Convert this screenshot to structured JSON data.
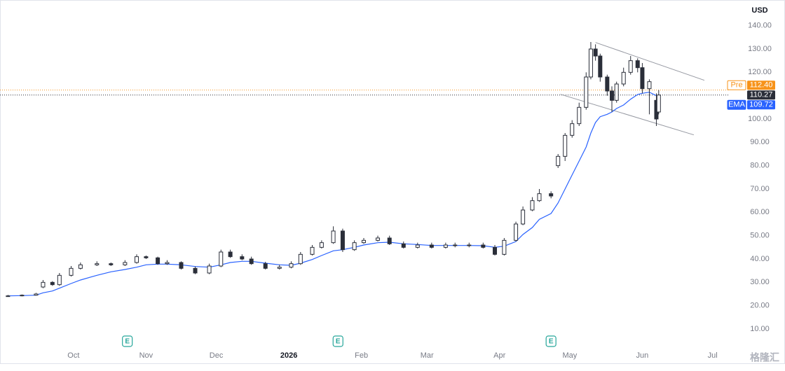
{
  "chart_data": {
    "type": "candlestick",
    "currency": "USD",
    "color": "#2a2e39",
    "x": [
      2,
      8,
      14,
      17,
      21,
      24,
      29,
      33,
      40,
      46,
      52,
      57,
      61,
      66,
      70,
      76,
      82,
      88,
      93,
      97,
      102,
      106,
      112,
      118,
      123,
      127,
      132,
      136,
      141,
      145,
      150,
      154,
      160,
      165,
      171,
      177,
      183,
      189,
      193,
      199,
      205,
      210,
      214,
      219,
      222,
      226,
      229,
      234,
      237,
      240,
      243,
      246,
      249,
      251,
      253,
      255,
      258,
      260,
      262,
      265,
      268,
      271,
      273,
      276,
      279,
      280
    ],
    "open": [
      24,
      24.2,
      24.5,
      28,
      30,
      29,
      33,
      36,
      37.5,
      38,
      37.5,
      38.5,
      41,
      40.5,
      38,
      38.5,
      36,
      34,
      37,
      43,
      41,
      40,
      38,
      36,
      36.5,
      38,
      42,
      45,
      47,
      52,
      44,
      47,
      48,
      49,
      46.5,
      45,
      46,
      45,
      46,
      46,
      46,
      45,
      42,
      48,
      55,
      61,
      65,
      68,
      80,
      84,
      93,
      98,
      105,
      118,
      130,
      127,
      118,
      112,
      108,
      115,
      120,
      125,
      122,
      113,
      108,
      103
    ],
    "high": [
      24.6,
      24.8,
      25.5,
      31,
      30.5,
      34,
      37,
      38.5,
      39,
      38.5,
      39.5,
      42,
      41.5,
      41,
      39.5,
      39,
      36.8,
      38,
      44,
      44,
      42,
      41,
      38.8,
      37.5,
      39,
      43,
      46,
      48,
      54,
      53,
      48,
      49,
      50,
      50,
      47.5,
      47,
      47,
      47,
      47,
      47,
      47,
      46,
      49,
      56,
      62.5,
      66.5,
      70,
      69,
      85,
      94,
      99.5,
      107,
      120,
      133,
      132,
      128,
      119,
      114,
      116,
      122,
      127,
      126,
      124,
      117,
      111,
      112.4
    ],
    "low": [
      23.8,
      24,
      24.3,
      27.5,
      28.5,
      28.5,
      32.5,
      35.5,
      37,
      37,
      37,
      38,
      40,
      37.5,
      37.5,
      35.5,
      33.5,
      33.5,
      36.5,
      40.5,
      39.5,
      37.5,
      35.5,
      35.5,
      36,
      37.5,
      41.5,
      44.5,
      46.5,
      43,
      43.5,
      46.5,
      47.5,
      46,
      44.5,
      44.5,
      44.5,
      44.5,
      45,
      45,
      44.5,
      41.5,
      41.5,
      47.5,
      54.5,
      60.5,
      64.5,
      66,
      79,
      82,
      92,
      97,
      104,
      117,
      125,
      116,
      110,
      103,
      107,
      114,
      119,
      120,
      111,
      102,
      97,
      102
    ],
    "close": [
      24.2,
      24.5,
      25,
      30,
      29,
      33,
      36,
      37.5,
      38,
      37.5,
      38.5,
      41,
      40.5,
      38,
      38.5,
      36,
      34,
      37,
      43,
      41,
      40,
      38,
      36,
      36.5,
      38,
      42,
      45,
      47,
      52,
      44,
      47,
      48,
      49,
      46.5,
      45,
      46,
      45,
      46,
      46,
      46,
      45,
      42,
      48,
      55,
      61,
      65,
      68,
      67,
      84,
      93,
      98,
      105,
      118,
      130,
      127,
      118,
      112,
      108,
      115,
      120,
      125,
      122,
      113,
      116,
      100,
      110.27
    ],
    "ema": {
      "name": "EMA",
      "color": "#2962ff",
      "values": [
        24.2,
        24.3,
        24.5,
        25.5,
        26.3,
        27.5,
        29.5,
        31,
        33,
        34.5,
        35.5,
        36.5,
        37.5,
        37.8,
        37.8,
        37.5,
        36.8,
        36.5,
        37.5,
        38.5,
        39,
        39,
        38.2,
        37.5,
        37.3,
        38.2,
        39.8,
        41.5,
        43.5,
        44,
        45,
        46,
        47,
        47.2,
        46.5,
        46.2,
        45.8,
        45.8,
        45.8,
        45.8,
        45.7,
        45,
        45.5,
        47.5,
        50.5,
        53.5,
        57,
        59.5,
        64,
        70,
        76,
        82,
        88,
        94,
        98.5,
        101,
        102,
        103,
        104.5,
        106,
        108.5,
        110.5,
        111,
        111.5,
        110,
        109.72
      ]
    },
    "xlim": [
      1,
      310
    ],
    "ylim": [
      4,
      151
    ],
    "xticks": [
      {
        "value": 30,
        "label": "Oct"
      },
      {
        "value": 61,
        "label": "Nov"
      },
      {
        "value": 91,
        "label": "Dec"
      },
      {
        "value": 122,
        "label": "2026"
      },
      {
        "value": 153,
        "label": "Feb"
      },
      {
        "value": 181,
        "label": "Mar"
      },
      {
        "value": 212,
        "label": "Apr"
      },
      {
        "value": 242,
        "label": "May"
      },
      {
        "value": 273,
        "label": "Jun"
      },
      {
        "value": 303,
        "label": "Jul"
      }
    ],
    "yticks": [
      {
        "value": 10,
        "label": "10.00"
      },
      {
        "value": 20,
        "label": "20.00"
      },
      {
        "value": 30,
        "label": "30.00"
      },
      {
        "value": 40,
        "label": "40.00"
      },
      {
        "value": 50,
        "label": "50.00"
      },
      {
        "value": 60,
        "label": "60.00"
      },
      {
        "value": 70,
        "label": "70.00"
      },
      {
        "value": 80,
        "label": "80.00"
      },
      {
        "value": 90,
        "label": "90.00"
      },
      {
        "value": 100,
        "label": "100.00"
      },
      {
        "value": 110,
        "label": "110.00"
      },
      {
        "value": 120,
        "label": "120.00"
      },
      {
        "value": 130,
        "label": "130.00"
      },
      {
        "value": 140,
        "label": "140.00"
      }
    ],
    "price_lines": [
      {
        "label": "Pre",
        "value": 112.4,
        "value_label": "112.40",
        "color": "#f7931a",
        "dotted": true
      },
      {
        "value": 110.27,
        "color": "#2a2e39",
        "dotted": true
      },
      {
        "label": "EMA",
        "value": 109.72,
        "color": "#2962ff",
        "dotted": false
      }
    ],
    "trendlines": [
      {
        "x": [
          253,
          299.5
        ],
        "y": [
          132.8,
          116.6
        ]
      },
      {
        "x": [
          238,
          295
        ],
        "y": [
          110.6,
          93.2
        ]
      }
    ],
    "events": [
      {
        "x": 53,
        "label": "E"
      },
      {
        "x": 143,
        "label": "E"
      },
      {
        "x": 234,
        "label": "E"
      }
    ],
    "watermark": "格隆汇"
  }
}
